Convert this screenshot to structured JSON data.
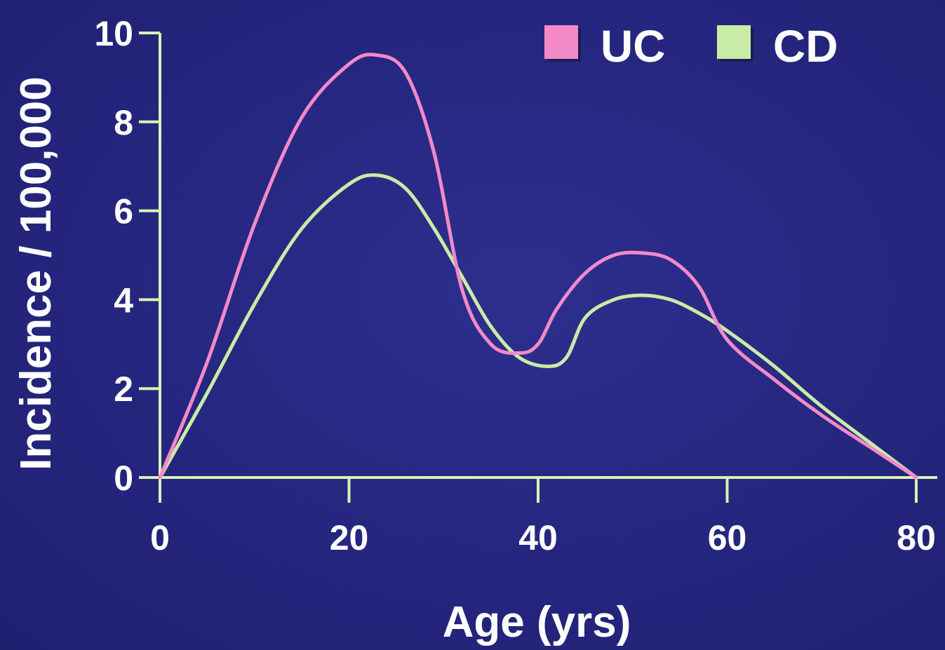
{
  "chart_data": {
    "type": "line",
    "title": "",
    "xlabel": "Age (yrs)",
    "ylabel": "Incidence / 100,000",
    "xlim": [
      0,
      80
    ],
    "ylim": [
      0,
      10
    ],
    "xticks": [
      "0",
      "20",
      "40",
      "60",
      "80"
    ],
    "yticks": [
      "0",
      "2",
      "4",
      "6",
      "8",
      "10"
    ],
    "grid": false,
    "legend_placement": "top-right",
    "series": [
      {
        "name": "UC",
        "color": "#f28ac8",
        "x": [
          0,
          5,
          10,
          15,
          20,
          23,
          26,
          29,
          32,
          35,
          38,
          40,
          42,
          45,
          48,
          51,
          54,
          57,
          60,
          65,
          70,
          75,
          80
        ],
        "y": [
          0,
          2.6,
          5.7,
          8.1,
          9.3,
          9.5,
          9.1,
          7.3,
          4.2,
          3.0,
          2.8,
          3.0,
          3.8,
          4.6,
          5.0,
          5.05,
          4.9,
          4.3,
          3.1,
          2.2,
          1.4,
          0.7,
          0
        ]
      },
      {
        "name": "CD",
        "color": "#c8eca6",
        "x": [
          0,
          5,
          10,
          15,
          20,
          23,
          26,
          29,
          32,
          35,
          38,
          41,
          43,
          45,
          48,
          51,
          54,
          57,
          60,
          65,
          70,
          75,
          80
        ],
        "y": [
          0,
          1.9,
          3.9,
          5.6,
          6.6,
          6.8,
          6.5,
          5.6,
          4.5,
          3.4,
          2.7,
          2.5,
          2.7,
          3.6,
          4.0,
          4.1,
          4.0,
          3.7,
          3.3,
          2.5,
          1.6,
          0.8,
          0
        ]
      }
    ]
  },
  "colors": {
    "background": "#24257d",
    "axis": "#d9f2b5"
  }
}
